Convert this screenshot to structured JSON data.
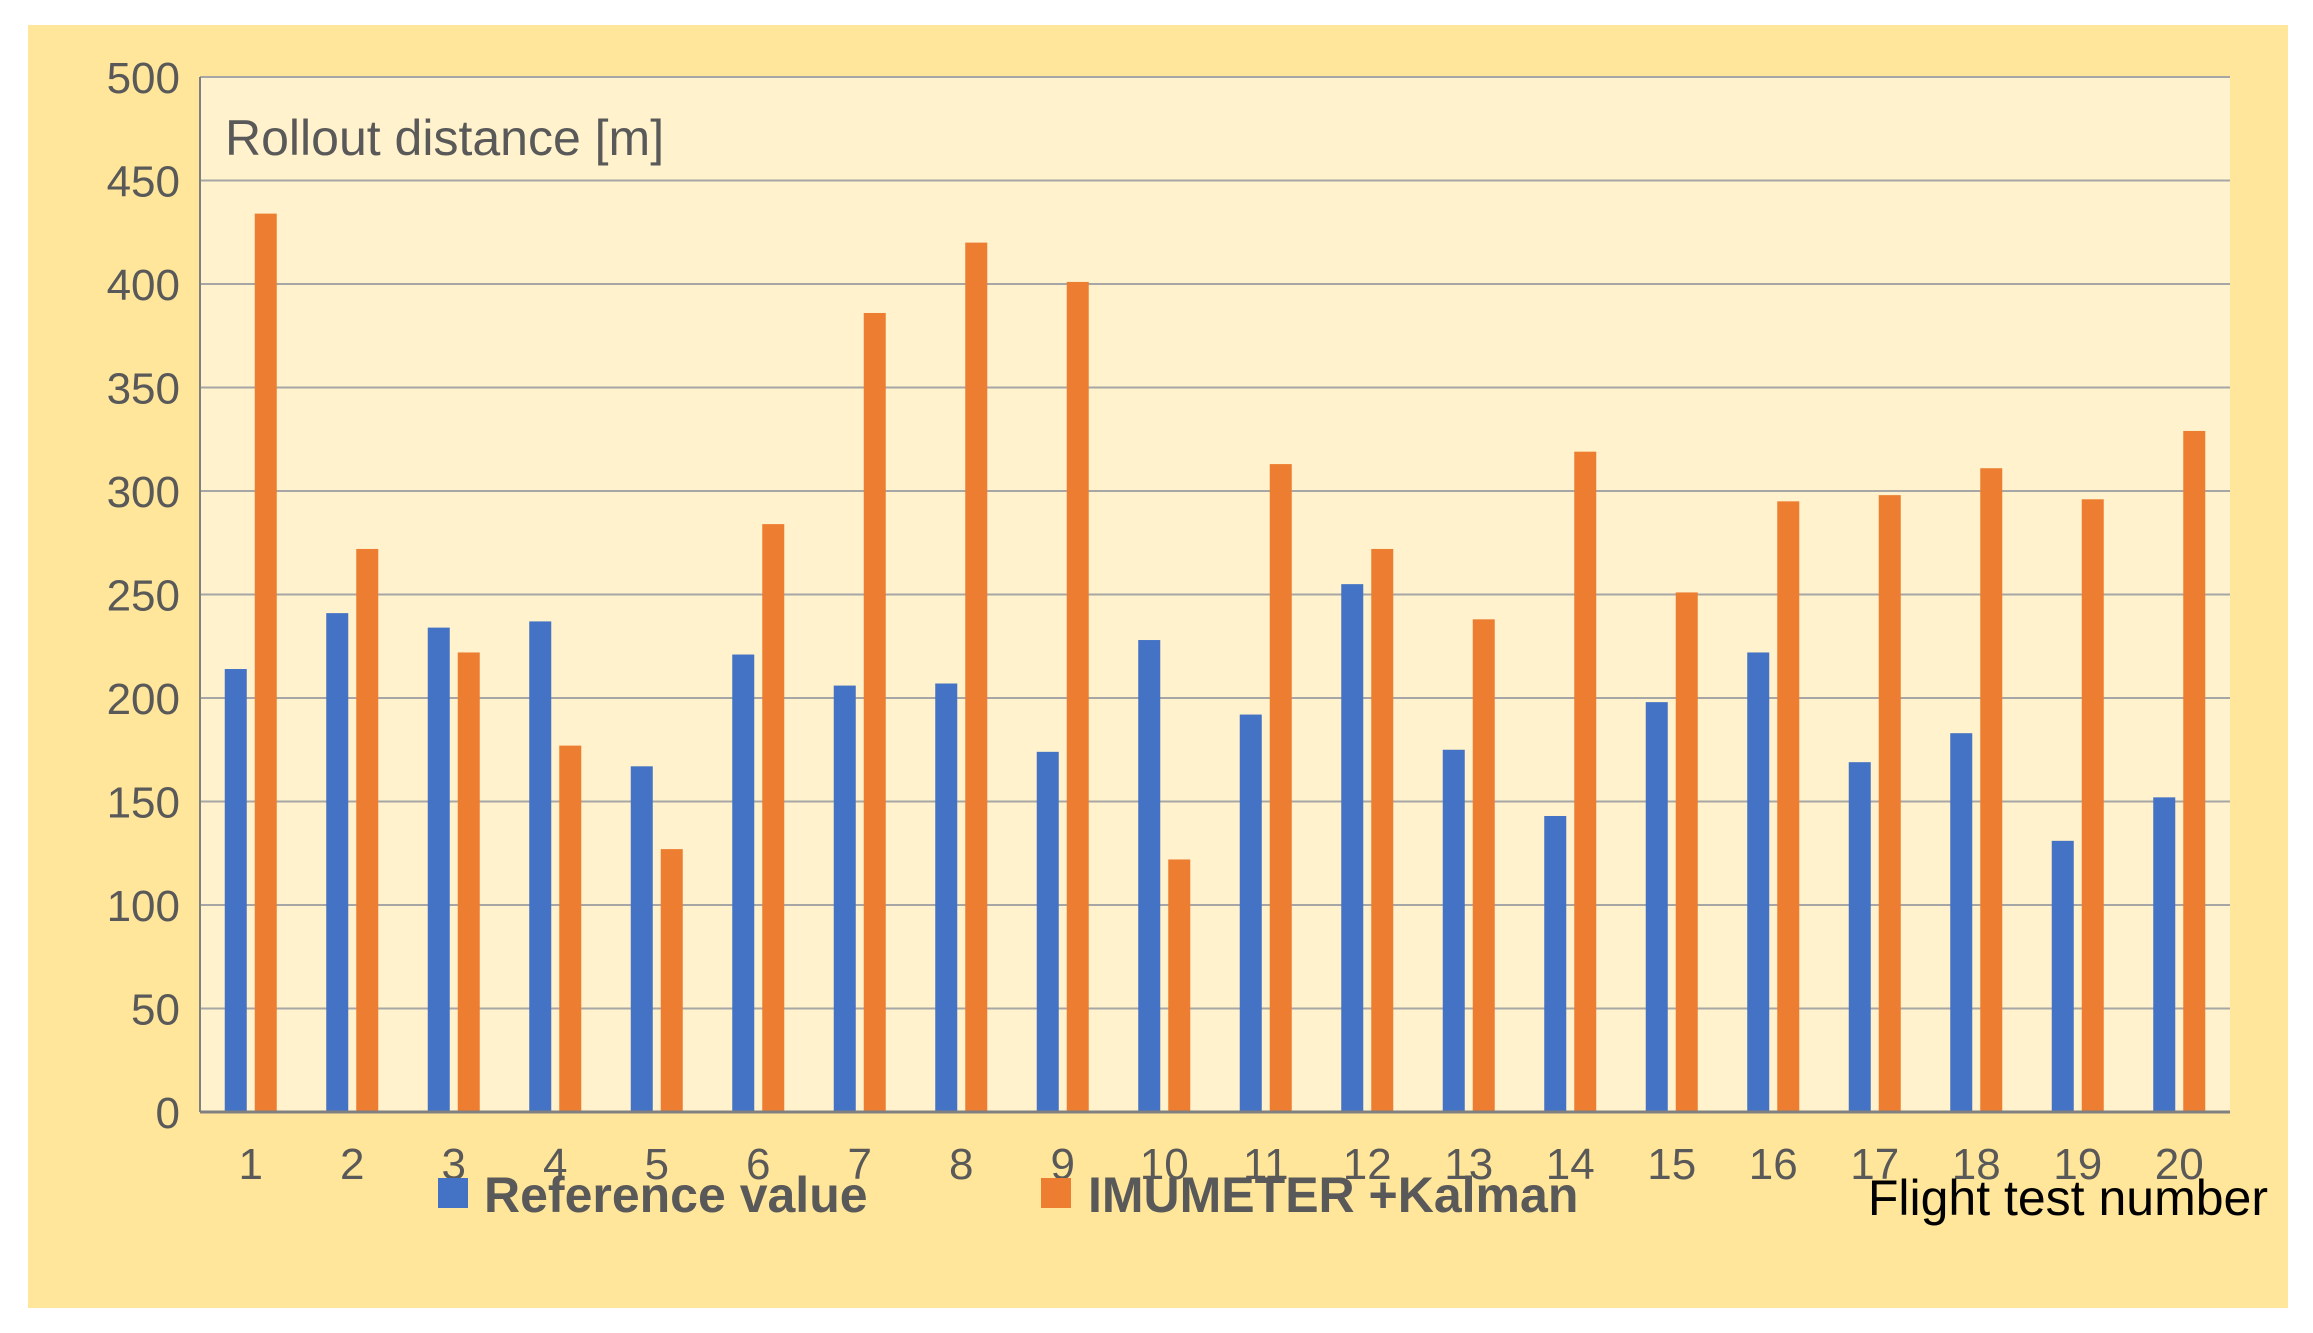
{
  "chart_data": {
    "type": "bar",
    "title": "",
    "annotation": "Rollout distance [m]",
    "xlabel": "Flight test number",
    "ylabel": "",
    "ylim": [
      0,
      500
    ],
    "yticks": [
      0,
      50,
      100,
      150,
      200,
      250,
      300,
      350,
      400,
      450,
      500
    ],
    "categories": [
      "1",
      "2",
      "3",
      "4",
      "5",
      "6",
      "7",
      "8",
      "9",
      "10",
      "11",
      "12",
      "13",
      "14",
      "15",
      "16",
      "17",
      "18",
      "19",
      "20"
    ],
    "series": [
      {
        "name": "Reference value",
        "color": "#4472c4",
        "values": [
          214,
          241,
          234,
          237,
          167,
          221,
          206,
          207,
          174,
          228,
          192,
          255,
          175,
          143,
          198,
          222,
          169,
          183,
          131,
          152
        ]
      },
      {
        "name": "IMUMETER +Kalman",
        "color": "#ed7d31",
        "values": [
          434,
          272,
          222,
          177,
          127,
          284,
          386,
          420,
          401,
          122,
          313,
          272,
          238,
          319,
          251,
          295,
          298,
          311,
          296,
          329
        ]
      }
    ],
    "legend_position": "bottom",
    "grid": true,
    "plot_background": "#fff2cc",
    "frame_background": "#ffe69a",
    "grid_color": "#a6a6a6",
    "text_color": "#595959"
  }
}
